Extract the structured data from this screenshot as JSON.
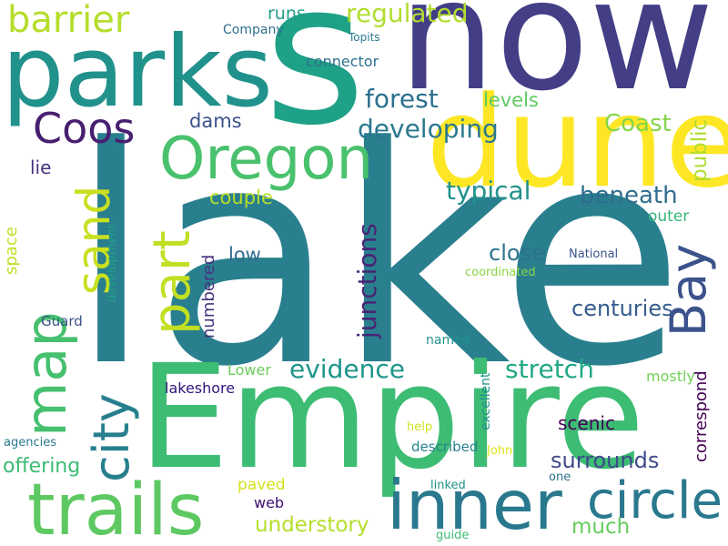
{
  "words": [
    {
      "text": "lake",
      "color": "#297f8e"
    },
    {
      "text": "now",
      "color": "#433e85"
    },
    {
      "text": "Empire",
      "color": "#3dbc74"
    },
    {
      "text": "s",
      "color": "#1fa187"
    },
    {
      "text": "dune",
      "color": "#fde725"
    },
    {
      "text": "parks",
      "color": "#21918c"
    },
    {
      "text": "trails",
      "color": "#5ec962"
    },
    {
      "text": "inner",
      "color": "#2a788e"
    },
    {
      "text": "Oregon",
      "color": "#4ac16d"
    },
    {
      "text": "circle",
      "color": "#2a788e"
    },
    {
      "text": "map",
      "color": "#46c06f"
    },
    {
      "text": "part",
      "color": "#c2df23"
    },
    {
      "text": "Bay",
      "color": "#3b528b"
    },
    {
      "text": "city",
      "color": "#277f8e"
    },
    {
      "text": "sand",
      "color": "#c8e020"
    },
    {
      "text": "Coos",
      "color": "#481f70"
    },
    {
      "text": "barrier",
      "color": "#b5de2b"
    },
    {
      "text": "evidence",
      "color": "#1f958b"
    },
    {
      "text": "stretch",
      "color": "#22a884"
    },
    {
      "text": "forest",
      "color": "#2c718e"
    },
    {
      "text": "Coast",
      "color": "#86d549"
    },
    {
      "text": "typical",
      "color": "#20928c"
    },
    {
      "text": "beneath",
      "color": "#2f6c8e"
    },
    {
      "text": "developing",
      "color": "#2a788e"
    },
    {
      "text": "much",
      "color": "#65cb5e"
    },
    {
      "text": "understory",
      "color": "#b5de2b"
    },
    {
      "text": "surrounds",
      "color": "#3e4a89"
    },
    {
      "text": "centuries",
      "color": "#365c8d"
    },
    {
      "text": "close",
      "color": "#2c728e"
    },
    {
      "text": "levels",
      "color": "#5ec962"
    },
    {
      "text": "low",
      "color": "#2f6b8e"
    },
    {
      "text": "offering",
      "color": "#3dbc74"
    },
    {
      "text": "scenic",
      "color": "#440154"
    },
    {
      "text": "couple",
      "color": "#b8de29"
    },
    {
      "text": "regulated",
      "color": "#b0dd2f"
    },
    {
      "text": "runs",
      "color": "#1f9e89"
    },
    {
      "text": "dams",
      "color": "#3b528b"
    },
    {
      "text": "lie",
      "color": "#46327e"
    },
    {
      "text": "outer",
      "color": "#35b779"
    },
    {
      "text": "connector",
      "color": "#2d708e"
    },
    {
      "text": "mostly",
      "color": "#73d056"
    },
    {
      "text": "paved",
      "color": "#d5e21a"
    },
    {
      "text": "web",
      "color": "#3b0f70"
    },
    {
      "text": "Lower",
      "color": "#6ccd5a"
    },
    {
      "text": "lakeshore",
      "color": "#30157a"
    },
    {
      "text": "Guard",
      "color": "#3b518b"
    },
    {
      "text": "described",
      "color": "#26828e"
    },
    {
      "text": "Company",
      "color": "#2e6e8e"
    },
    {
      "text": "Topits",
      "color": "#2a788e"
    },
    {
      "text": "named",
      "color": "#1f948c"
    },
    {
      "text": "National",
      "color": "#3b528b"
    },
    {
      "text": "coordinated",
      "color": "#8bd646"
    },
    {
      "text": "help",
      "color": "#d0e11c"
    },
    {
      "text": "agencies",
      "color": "#2a778e"
    },
    {
      "text": "John",
      "color": "#dde318"
    },
    {
      "text": "linked",
      "color": "#21918c"
    },
    {
      "text": "one",
      "color": "#2c728e"
    },
    {
      "text": "guide",
      "color": "#3dbc74"
    },
    {
      "text": "junctions",
      "color": "#482475"
    },
    {
      "text": "public",
      "color": "#b0dd2f"
    },
    {
      "text": "correspond",
      "color": "#440154"
    },
    {
      "text": "space",
      "color": "#c0df25"
    },
    {
      "text": "numbered",
      "color": "#46327e"
    },
    {
      "text": "development",
      "color": "#1fa088"
    },
    {
      "text": "excellent",
      "color": "#21918c"
    }
  ]
}
